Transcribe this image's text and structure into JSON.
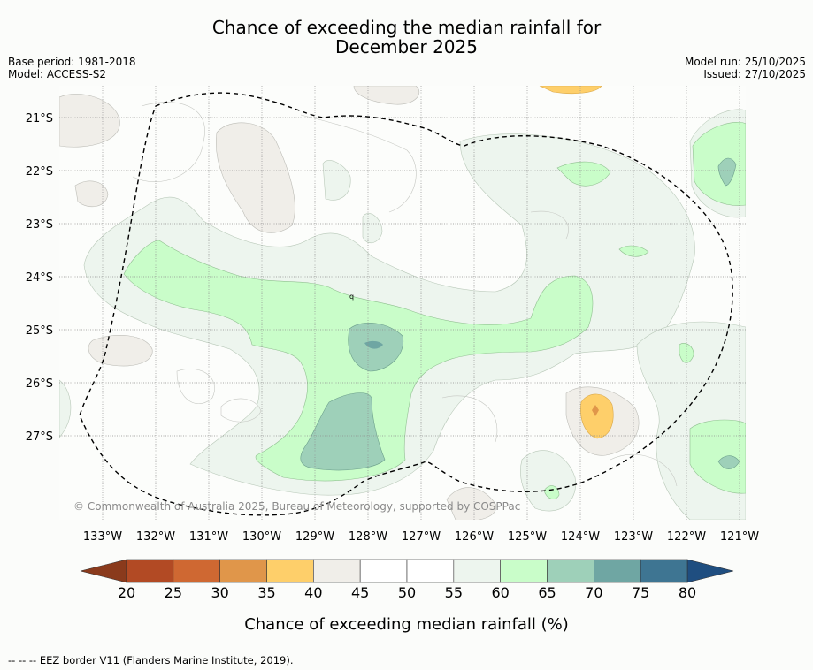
{
  "title_line1": "Chance of exceeding the median rainfall for",
  "title_line2": "December 2025",
  "meta_left": [
    "Base period: 1981-2018",
    "Model: ACCESS-S2"
  ],
  "meta_right": [
    "Model run: 25/10/2025",
    "Issued: 27/10/2025"
  ],
  "lat_labels": [
    "21°S",
    "22°S",
    "23°S",
    "24°S",
    "25°S",
    "26°S",
    "27°S"
  ],
  "lon_labels": [
    "133°W",
    "132°W",
    "131°W",
    "130°W",
    "129°W",
    "128°W",
    "127°W",
    "126°W",
    "125°W",
    "124°W",
    "123°W",
    "122°W",
    "121°W"
  ],
  "copyright": "© Commonwealth of Australia 2025, Bureau of Meteorology, supported by COSPPac",
  "colorbar": {
    "ticks": [
      "20",
      "25",
      "30",
      "35",
      "40",
      "45",
      "50",
      "55",
      "60",
      "65",
      "70",
      "75",
      "80"
    ],
    "colors": [
      "#b24a24",
      "#cf6832",
      "#e0964a",
      "#fecf6a",
      "#f0eee9",
      "#ffffff",
      "#ffffff",
      "#edf5ee",
      "#c9fdc9",
      "#9ed0b9",
      "#6fa6a3",
      "#3e7592"
    ],
    "under_color": "#8a3a1c",
    "over_color": "#1f4e80",
    "label": "Chance of exceeding median rainfall (%)"
  },
  "footer": "--  --  -- EEZ border V11 (Flanders Marine Institute, 2019)."
}
